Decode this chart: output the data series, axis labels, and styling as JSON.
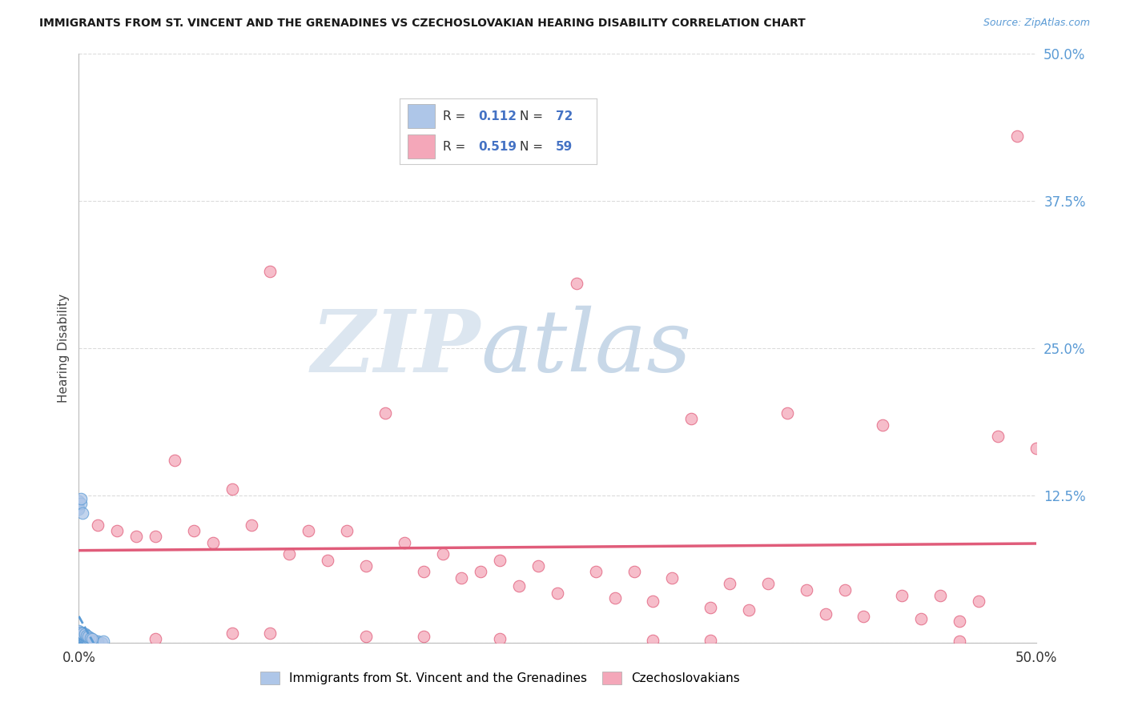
{
  "title": "IMMIGRANTS FROM ST. VINCENT AND THE GRENADINES VS CZECHOSLOVAKIAN HEARING DISABILITY CORRELATION CHART",
  "source": "Source: ZipAtlas.com",
  "ylabel": "Hearing Disability",
  "legend_blue_R": "0.112",
  "legend_blue_N": "72",
  "legend_pink_R": "0.519",
  "legend_pink_N": "59",
  "legend_blue_label": "Immigrants from St. Vincent and the Grenadines",
  "legend_pink_label": "Czechoslovakians",
  "blue_color": "#aec6e8",
  "blue_edge_color": "#5b9bd5",
  "blue_line_color": "#5b9bd5",
  "pink_color": "#f4a7b9",
  "pink_edge_color": "#e05c7a",
  "pink_line_color": "#e05c7a",
  "watermark_color": "#d0dce8",
  "bg_color": "#ffffff",
  "grid_color": "#cccccc",
  "xlim": [
    0.0,
    0.5
  ],
  "ylim": [
    0.0,
    0.5
  ],
  "ytick_vals": [
    0.0,
    0.125,
    0.25,
    0.375,
    0.5
  ],
  "ytick_labels": [
    "",
    "12.5%",
    "25.0%",
    "37.5%",
    "50.0%"
  ],
  "xtick_vals": [
    0.0,
    0.125,
    0.25,
    0.375,
    0.5
  ],
  "xtick_labels": [
    "0.0%",
    "",
    "",
    "",
    "50.0%"
  ],
  "blue_x": [
    0.0,
    0.0,
    0.0,
    0.0,
    0.0,
    0.0,
    0.0,
    0.0,
    0.0,
    0.0,
    0.001,
    0.001,
    0.001,
    0.001,
    0.001,
    0.001,
    0.001,
    0.001,
    0.002,
    0.002,
    0.002,
    0.002,
    0.002,
    0.002,
    0.002,
    0.003,
    0.003,
    0.003,
    0.003,
    0.003,
    0.004,
    0.004,
    0.004,
    0.004,
    0.005,
    0.005,
    0.005,
    0.006,
    0.006,
    0.006,
    0.007,
    0.007,
    0.008,
    0.008,
    0.009,
    0.009,
    0.01,
    0.01,
    0.012,
    0.013,
    0.001,
    0.002,
    0.003,
    0.004,
    0.005,
    0.001,
    0.002,
    0.003,
    0.0,
    0.0,
    0.0,
    0.001,
    0.001,
    0.002,
    0.0,
    0.001,
    0.002,
    0.003,
    0.004,
    0.005,
    0.006,
    0.007
  ],
  "blue_y": [
    0.0,
    0.001,
    0.002,
    0.003,
    0.004,
    0.005,
    0.006,
    0.007,
    0.008,
    0.009,
    0.0,
    0.001,
    0.002,
    0.003,
    0.004,
    0.005,
    0.006,
    0.007,
    0.0,
    0.001,
    0.002,
    0.003,
    0.004,
    0.005,
    0.006,
    0.0,
    0.001,
    0.002,
    0.003,
    0.004,
    0.0,
    0.001,
    0.002,
    0.003,
    0.0,
    0.001,
    0.002,
    0.0,
    0.001,
    0.002,
    0.0,
    0.001,
    0.0,
    0.001,
    0.0,
    0.001,
    0.0,
    0.001,
    0.0,
    0.001,
    0.008,
    0.007,
    0.006,
    0.005,
    0.004,
    0.009,
    0.008,
    0.007,
    0.115,
    0.12,
    0.113,
    0.118,
    0.122,
    0.11,
    0.01,
    0.009,
    0.008,
    0.007,
    0.006,
    0.005,
    0.004,
    0.003
  ],
  "pink_x": [
    0.49,
    0.1,
    0.26,
    0.05,
    0.37,
    0.42,
    0.48,
    0.32,
    0.16,
    0.08,
    0.03,
    0.06,
    0.09,
    0.12,
    0.14,
    0.17,
    0.19,
    0.22,
    0.24,
    0.27,
    0.29,
    0.31,
    0.34,
    0.36,
    0.38,
    0.4,
    0.43,
    0.45,
    0.47,
    0.02,
    0.04,
    0.07,
    0.11,
    0.13,
    0.15,
    0.18,
    0.2,
    0.23,
    0.25,
    0.28,
    0.3,
    0.33,
    0.35,
    0.39,
    0.41,
    0.44,
    0.46,
    0.01,
    0.5,
    0.21,
    0.08,
    0.15,
    0.22,
    0.3,
    0.1,
    0.18,
    0.04,
    0.33,
    0.46
  ],
  "pink_y": [
    0.43,
    0.315,
    0.305,
    0.155,
    0.195,
    0.185,
    0.175,
    0.19,
    0.195,
    0.13,
    0.09,
    0.095,
    0.1,
    0.095,
    0.095,
    0.085,
    0.075,
    0.07,
    0.065,
    0.06,
    0.06,
    0.055,
    0.05,
    0.05,
    0.045,
    0.045,
    0.04,
    0.04,
    0.035,
    0.095,
    0.09,
    0.085,
    0.075,
    0.07,
    0.065,
    0.06,
    0.055,
    0.048,
    0.042,
    0.038,
    0.035,
    0.03,
    0.028,
    0.024,
    0.022,
    0.02,
    0.018,
    0.1,
    0.165,
    0.06,
    0.008,
    0.005,
    0.003,
    0.002,
    0.008,
    0.005,
    0.003,
    0.002,
    0.001
  ]
}
